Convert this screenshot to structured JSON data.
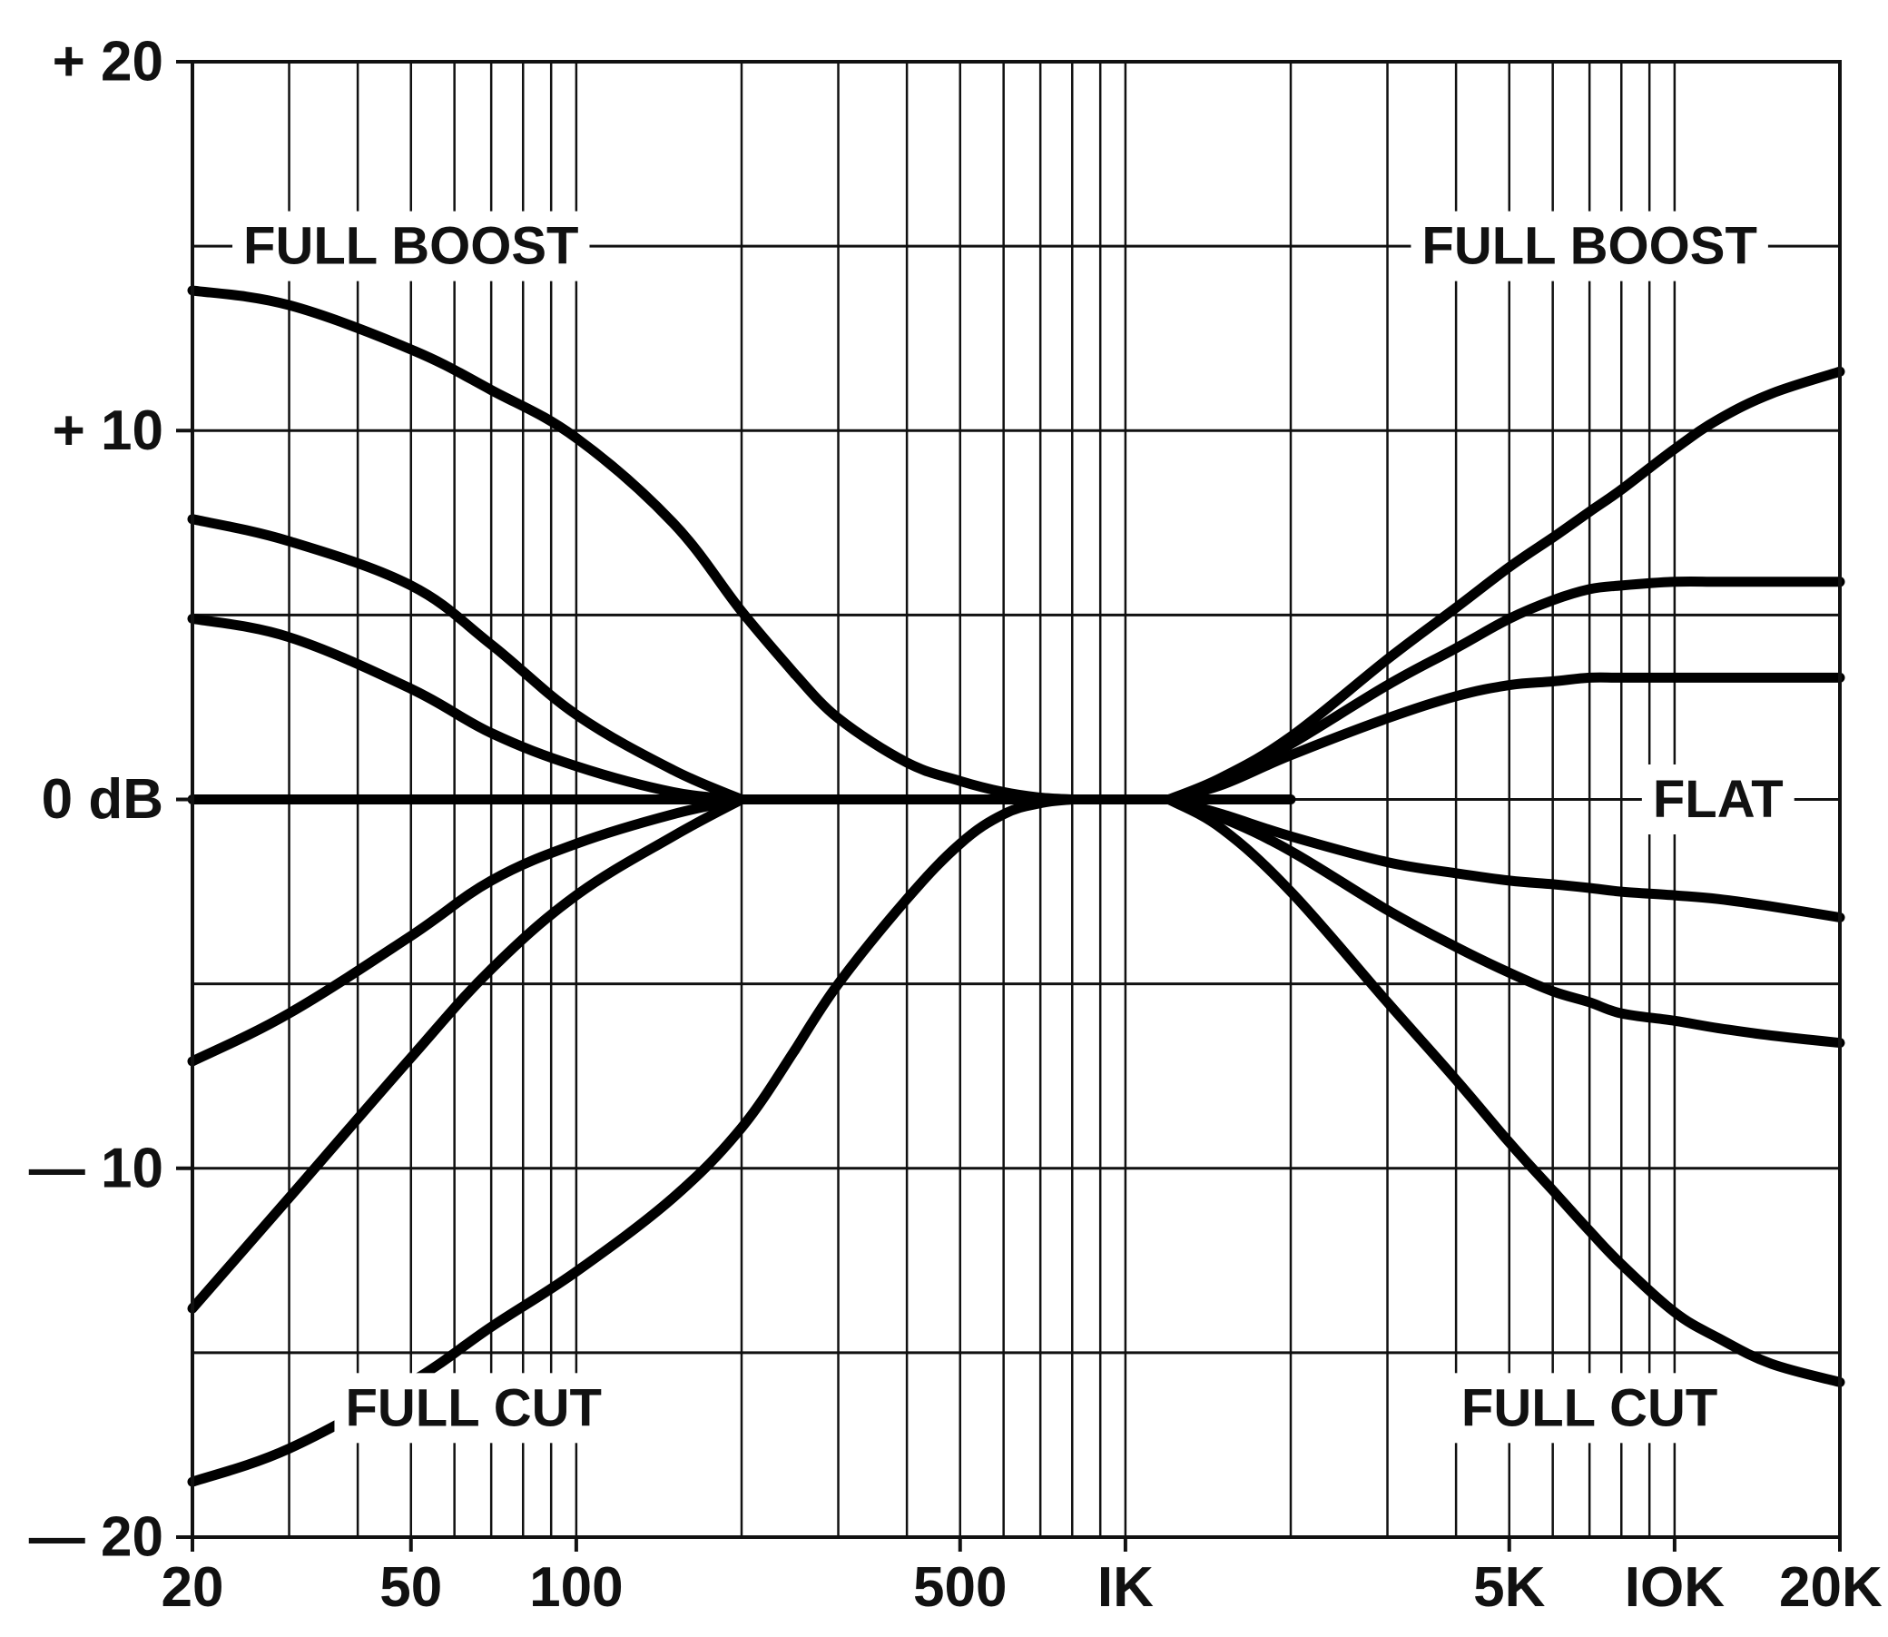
{
  "chart_data": {
    "type": "line",
    "title": "",
    "xlabel": "",
    "ylabel": "",
    "x_scale": "log",
    "xlim": [
      20,
      20000
    ],
    "ylim": [
      -20,
      20
    ],
    "grid": true,
    "x_ticks": [
      {
        "value": 20,
        "label": "20"
      },
      {
        "value": 50,
        "label": "50"
      },
      {
        "value": 100,
        "label": "100"
      },
      {
        "value": 500,
        "label": "500"
      },
      {
        "value": 1000,
        "label": "IK"
      },
      {
        "value": 5000,
        "label": "5K"
      },
      {
        "value": 10000,
        "label": "IOK"
      },
      {
        "value": 20000,
        "label": "20K"
      }
    ],
    "y_ticks": [
      {
        "value": 20,
        "label": "+ 20"
      },
      {
        "value": 10,
        "label": "+ 10"
      },
      {
        "value": 0,
        "label": "0 dB"
      },
      {
        "value": -10,
        "label": "— 10"
      },
      {
        "value": -20,
        "label": "— 20"
      }
    ],
    "annotations": [
      {
        "text": "FULL  BOOST",
        "x": 50,
        "y": 15
      },
      {
        "text": "FULL  BOOST",
        "x": 7000,
        "y": 15
      },
      {
        "text": "FLAT",
        "x": 12000,
        "y": 0
      },
      {
        "text": "FULL  CUT",
        "x": 65,
        "y": -16.5
      },
      {
        "text": "FULL  CUT",
        "x": 7000,
        "y": -16.5
      }
    ],
    "series": [
      {
        "x": [
          20,
          30,
          50,
          70,
          100,
          150,
          200,
          300,
          400,
          500,
          600,
          700,
          800,
          1000,
          1200,
          1500,
          2000
        ],
        "y": [
          0,
          0,
          0,
          0,
          0,
          0,
          0,
          0,
          0,
          0,
          0,
          0,
          0,
          0,
          0,
          0,
          0
        ]
      },
      {
        "x": [
          20,
          30,
          50,
          70,
          100,
          150,
          200,
          250
        ],
        "y": [
          13.8,
          13.4,
          12.2,
          11.1,
          9.8,
          7.5,
          5.1,
          3.4
        ]
      },
      {
        "x": [
          250,
          300,
          400,
          500,
          600,
          700,
          800
        ],
        "y": [
          3.4,
          2.2,
          1.0,
          0.5,
          0.2,
          0.05,
          0
        ]
      },
      {
        "x": [
          20,
          30,
          50,
          70,
          100,
          150,
          200
        ],
        "y": [
          7.6,
          7.0,
          5.8,
          4.2,
          2.3,
          0.8,
          0
        ]
      },
      {
        "x": [
          20,
          30,
          50,
          70,
          100,
          150,
          200
        ],
        "y": [
          4.9,
          4.4,
          3.0,
          1.8,
          0.9,
          0.2,
          0
        ]
      },
      {
        "x": [
          20,
          30,
          50,
          70,
          100,
          150,
          200
        ],
        "y": [
          -7.1,
          -5.8,
          -3.7,
          -2.2,
          -1.2,
          -0.4,
          0
        ]
      },
      {
        "x": [
          20,
          30,
          50,
          70,
          100,
          150,
          200
        ],
        "y": [
          -13.8,
          -10.8,
          -7.0,
          -4.6,
          -2.6,
          -1.0,
          0
        ]
      },
      {
        "x": [
          20,
          30,
          50,
          70,
          100,
          150,
          200,
          250
        ],
        "y": [
          -18.5,
          -17.6,
          -15.8,
          -14.3,
          -12.8,
          -10.8,
          -8.9,
          -6.8
        ]
      },
      {
        "x": [
          250,
          300,
          400,
          500,
          600,
          700,
          800
        ],
        "y": [
          -6.8,
          -5.0,
          -2.7,
          -1.2,
          -0.4,
          -0.1,
          0
        ]
      },
      {
        "x": [
          1200,
          1500,
          2000,
          3000,
          4000,
          5000,
          6000,
          7000,
          8000,
          10000,
          12000,
          15000,
          20000
        ],
        "y": [
          0,
          0.6,
          1.7,
          3.8,
          5.2,
          6.3,
          7.1,
          7.8,
          8.4,
          9.5,
          10.3,
          11.0,
          11.6
        ]
      },
      {
        "x": [
          1200,
          1500,
          2000,
          3000,
          4000,
          5000,
          6000,
          7000,
          8000,
          10000,
          12000,
          15000,
          20000
        ],
        "y": [
          0,
          0.5,
          1.5,
          3.1,
          4.1,
          4.9,
          5.4,
          5.7,
          5.8,
          5.9,
          5.9,
          5.9,
          5.9
        ]
      },
      {
        "x": [
          1200,
          1500,
          2000,
          3000,
          4000,
          5000,
          6000,
          7000,
          8000,
          10000,
          12000,
          15000,
          20000
        ],
        "y": [
          0,
          0.4,
          1.2,
          2.2,
          2.8,
          3.1,
          3.2,
          3.3,
          3.3,
          3.3,
          3.3,
          3.3,
          3.3
        ]
      },
      {
        "x": [
          1200,
          1500,
          2000,
          3000,
          4000,
          5000,
          6000,
          7000,
          8000,
          10000,
          12000,
          15000,
          20000
        ],
        "y": [
          0,
          -0.4,
          -1.0,
          -1.7,
          -2.0,
          -2.2,
          -2.3,
          -2.4,
          -2.5,
          -2.6,
          -2.7,
          -2.9,
          -3.2
        ]
      },
      {
        "x": [
          1200,
          1500,
          2000,
          3000,
          4000,
          5000,
          6000,
          7000,
          8000,
          10000,
          12000,
          15000,
          20000
        ],
        "y": [
          0,
          -0.5,
          -1.4,
          -3.0,
          -4.0,
          -4.7,
          -5.2,
          -5.5,
          -5.8,
          -6.0,
          -6.2,
          -6.4,
          -6.6
        ]
      },
      {
        "x": [
          1200,
          1500,
          2000,
          3000,
          4000,
          5000,
          6000,
          7000,
          8000,
          10000,
          12000,
          15000,
          20000
        ],
        "y": [
          0,
          -0.8,
          -2.5,
          -5.5,
          -7.6,
          -9.3,
          -10.6,
          -11.7,
          -12.6,
          -13.9,
          -14.6,
          -15.3,
          -15.8
        ]
      }
    ]
  }
}
